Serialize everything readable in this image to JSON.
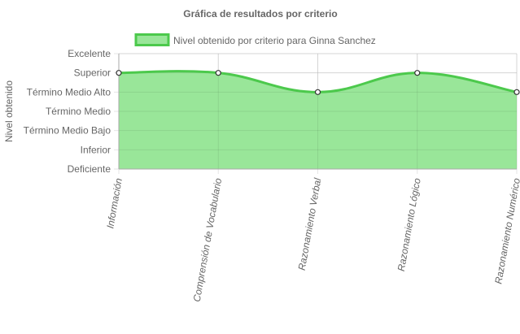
{
  "chart_data": {
    "type": "area",
    "title": "Gráfica de resultados por criterio",
    "ylabel": "Nivel obtenido",
    "xlabel": "",
    "y_levels": [
      "Deficiente",
      "Inferior",
      "Término Medio Bajo",
      "Término Medio",
      "Término Medio Alto",
      "Superior",
      "Excelente"
    ],
    "categories": [
      "Información",
      "Comprensión de Vocabulario",
      "Razonamiento Verbal",
      "Razonamiento Lógico",
      "Razonamiento Numérico"
    ],
    "series": [
      {
        "name": "Nivel obtenido por criterio para Ginna Sanchez",
        "values": [
          5,
          5,
          4,
          5,
          4
        ],
        "value_labels": [
          "Superior",
          "Superior",
          "Término Medio Alto",
          "Superior",
          "Término Medio Alto"
        ],
        "line_color": "#4cc94c",
        "fill_color": "#99e699"
      }
    ],
    "ylim": [
      0,
      6
    ],
    "grid": true,
    "legend_position": "top"
  }
}
